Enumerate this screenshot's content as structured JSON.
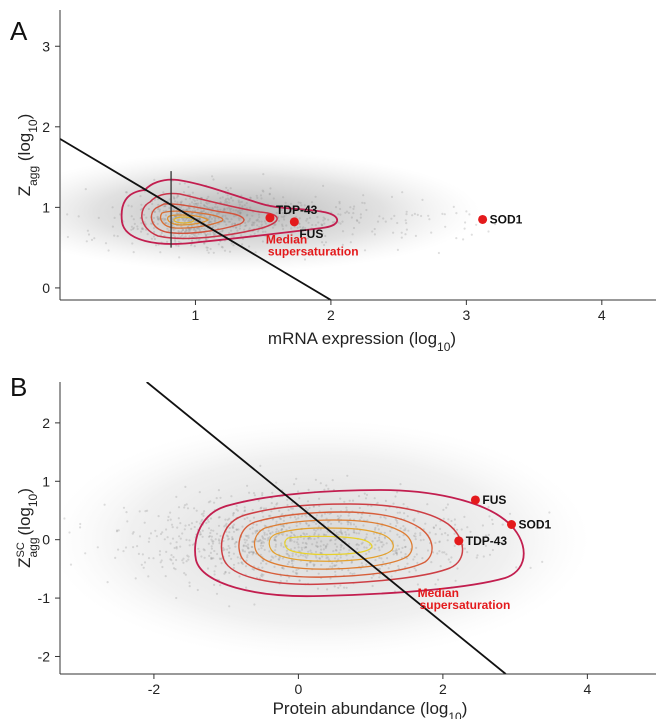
{
  "chart_data": [
    {
      "panel": "A",
      "type": "scatter",
      "xlabel": "mRNA expression (log",
      "xlabel_sub": "10",
      "xlabel_tail": ")",
      "ylabel": "Z",
      "ylabel_sub": "agg",
      "ylabel_mid": " (log",
      "ylabel_sub2": "10",
      "ylabel_tail": ")",
      "xlim": [
        0,
        4.4
      ],
      "ylim": [
        -0.15,
        3.45
      ],
      "xticks": [
        1,
        2,
        3,
        4
      ],
      "yticks": [
        0,
        1,
        2,
        3
      ],
      "grid": false,
      "background_cloud": {
        "center": [
          0.82,
          0.85
        ],
        "note": "dense grey scatter cloud with density contours"
      },
      "line": {
        "p1": [
          0,
          1.85
        ],
        "p2": [
          2,
          -0.15
        ]
      },
      "vertical_mark_x": 0.82,
      "highlighted": [
        {
          "label": "TDP-43",
          "x": 1.55,
          "y": 0.87
        },
        {
          "label": "FUS",
          "x": 1.73,
          "y": 0.82
        },
        {
          "label": "SOD1",
          "x": 3.12,
          "y": 0.85
        }
      ],
      "annotation": {
        "line1": "Median",
        "line2": "supersaturation",
        "x": 1.52,
        "y": 0.55
      },
      "highlight_color": "#e41a1c"
    },
    {
      "panel": "B",
      "type": "scatter",
      "xlabel": "Protein abundance (log",
      "xlabel_sub": "10",
      "xlabel_tail": ")",
      "ylabel": "Z",
      "ylabel_sub": "agg",
      "ylabel_sup": "SC",
      "ylabel_mid": " (log",
      "ylabel_sub2": "10",
      "ylabel_tail": ")",
      "xlim": [
        -3.3,
        4.95
      ],
      "ylim": [
        -2.3,
        2.7
      ],
      "xticks": [
        -2,
        0,
        2,
        4
      ],
      "yticks": [
        -2,
        -1,
        0,
        1,
        2
      ],
      "grid": false,
      "background_cloud": {
        "center": [
          0.0,
          0.0
        ],
        "note": "grey scatter cloud with density contours"
      },
      "line": {
        "p1": [
          -2.1,
          2.7
        ],
        "p2": [
          2.87,
          -2.3
        ]
      },
      "highlighted": [
        {
          "label": "FUS",
          "x": 2.45,
          "y": 0.68
        },
        {
          "label": "SOD1",
          "x": 2.95,
          "y": 0.26
        },
        {
          "label": "TDP-43",
          "x": 2.22,
          "y": -0.02
        }
      ],
      "annotation": {
        "line1": "Median",
        "line2": "supersaturation",
        "x": 1.65,
        "y": -0.98
      },
      "highlight_color": "#e41a1c"
    }
  ]
}
